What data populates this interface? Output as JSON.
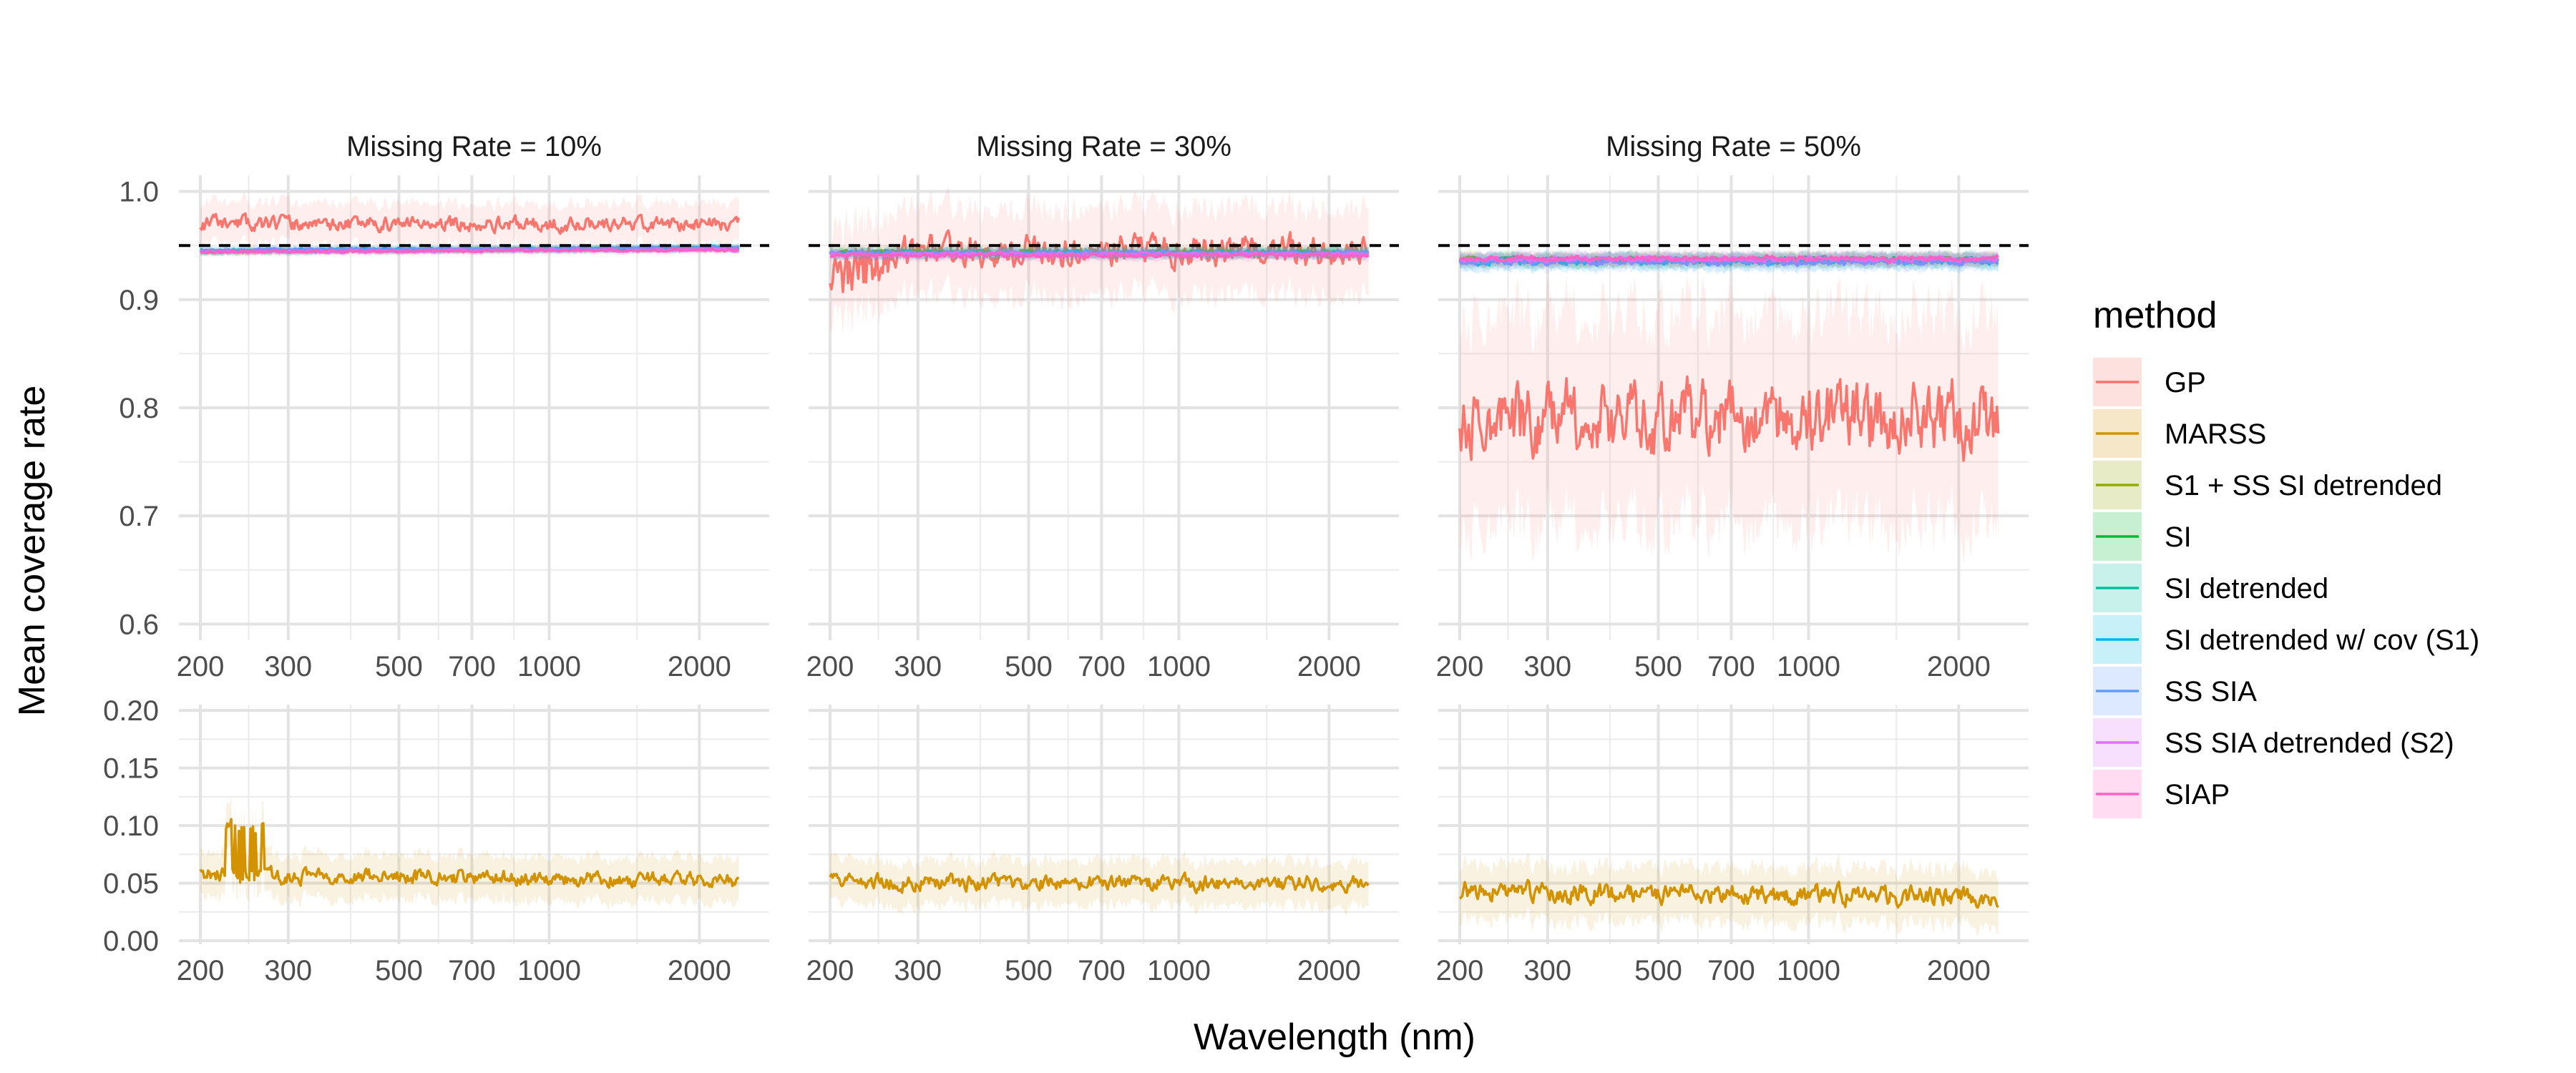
{
  "chart_data": {
    "type": "line",
    "xlabel": "Wavelength (nm)",
    "ylabel": "Mean coverage rate",
    "x_scale": "log",
    "x_range": [
      200,
      2500
    ],
    "x_ticks": [
      200,
      300,
      500,
      700,
      1000,
      2000
    ],
    "x_tick_labels": [
      "200",
      "300",
      "500",
      "700",
      "1000",
      "2000"
    ],
    "reference_line": 0.95,
    "grid": true,
    "legend": {
      "title": "method",
      "position": "right",
      "items": [
        {
          "name": "GP",
          "color": "#F8766D"
        },
        {
          "name": "MARSS",
          "color": "#D39200"
        },
        {
          "name": "S1 + SS SI detrended",
          "color": "#93AA00"
        },
        {
          "name": "SI",
          "color": "#00BA38"
        },
        {
          "name": "SI detrended",
          "color": "#00C19F"
        },
        {
          "name": "SI detrended w/ cov (S1)",
          "color": "#00B9E3"
        },
        {
          "name": "SS SIA",
          "color": "#619CFF"
        },
        {
          "name": "SS SIA detrended (S2)",
          "color": "#DB72FB"
        },
        {
          "name": "SIAP",
          "color": "#FF61C3"
        }
      ]
    },
    "panels": {
      "facets": [
        "Missing Rate = 10%",
        "Missing Rate = 30%",
        "Missing Rate = 50%"
      ],
      "upper": {
        "ylim": [
          0.585,
          1.015
        ],
        "y_ticks": [
          0.6,
          0.7,
          0.8,
          0.9,
          1.0
        ],
        "y_tick_labels": [
          "0.6",
          "0.7",
          "0.8",
          "0.9",
          "1.0"
        ]
      },
      "lower": {
        "ylim": [
          -0.003,
          0.205
        ],
        "y_ticks": [
          0.0,
          0.05,
          0.1,
          0.15,
          0.2
        ],
        "y_tick_labels": [
          "0.00",
          "0.05",
          "0.10",
          "0.15",
          "0.20"
        ]
      }
    },
    "series": [
      {
        "name": "GP",
        "panel": "upper",
        "facet": 0,
        "mean": 0.97,
        "amp": 0.012,
        "trend": 0.0,
        "seed": 11
      },
      {
        "name": "GP",
        "panel": "upper",
        "facet": 1,
        "mean": 0.945,
        "amp": 0.025,
        "trend": 0.0,
        "seed": 12
      },
      {
        "name": "GP",
        "panel": "upper",
        "facet": 2,
        "mean": 0.79,
        "amp": 0.06,
        "trend": 0.0,
        "seed": 13
      },
      {
        "name": "MARSS",
        "panel": "lower",
        "facet": 0,
        "mean": 0.055,
        "amp": 0.012,
        "trend": -0.005,
        "seed": 21
      },
      {
        "name": "MARSS",
        "panel": "lower",
        "facet": 1,
        "mean": 0.05,
        "amp": 0.012,
        "trend": 0.0,
        "seed": 22
      },
      {
        "name": "MARSS",
        "panel": "lower",
        "facet": 2,
        "mean": 0.04,
        "amp": 0.015,
        "trend": -0.005,
        "seed": 23
      },
      {
        "name": "S1 + SS SI detrended",
        "panel": "upper",
        "facet": 0,
        "mean": 0.946,
        "amp": 0.002,
        "trend": 0.003,
        "seed": 31
      },
      {
        "name": "S1 + SS SI detrended",
        "panel": "upper",
        "facet": 1,
        "mean": 0.944,
        "amp": 0.003,
        "trend": 0.0,
        "seed": 32
      },
      {
        "name": "S1 + SS SI detrended",
        "panel": "upper",
        "facet": 2,
        "mean": 0.937,
        "amp": 0.004,
        "trend": 0.0,
        "seed": 33
      },
      {
        "name": "SI",
        "panel": "upper",
        "facet": 0,
        "mean": 0.946,
        "amp": 0.002,
        "trend": 0.003,
        "seed": 41
      },
      {
        "name": "SI",
        "panel": "upper",
        "facet": 1,
        "mean": 0.943,
        "amp": 0.003,
        "trend": 0.0,
        "seed": 42
      },
      {
        "name": "SI",
        "panel": "upper",
        "facet": 2,
        "mean": 0.937,
        "amp": 0.004,
        "trend": 0.0,
        "seed": 43
      },
      {
        "name": "SI detrended",
        "panel": "upper",
        "facet": 0,
        "mean": 0.946,
        "amp": 0.002,
        "trend": 0.003,
        "seed": 51
      },
      {
        "name": "SI detrended",
        "panel": "upper",
        "facet": 1,
        "mean": 0.943,
        "amp": 0.003,
        "trend": 0.0,
        "seed": 52
      },
      {
        "name": "SI detrended",
        "panel": "upper",
        "facet": 2,
        "mean": 0.936,
        "amp": 0.004,
        "trend": 0.0,
        "seed": 53
      },
      {
        "name": "SI detrended w/ cov (S1)",
        "panel": "upper",
        "facet": 0,
        "mean": 0.947,
        "amp": 0.002,
        "trend": 0.003,
        "seed": 61
      },
      {
        "name": "SI detrended w/ cov (S1)",
        "panel": "upper",
        "facet": 1,
        "mean": 0.943,
        "amp": 0.003,
        "trend": 0.0,
        "seed": 62
      },
      {
        "name": "SI detrended w/ cov (S1)",
        "panel": "upper",
        "facet": 2,
        "mean": 0.935,
        "amp": 0.005,
        "trend": 0.0,
        "seed": 63
      },
      {
        "name": "SS SIA",
        "panel": "upper",
        "facet": 0,
        "mean": 0.947,
        "amp": 0.002,
        "trend": 0.003,
        "seed": 71
      },
      {
        "name": "SS SIA",
        "panel": "upper",
        "facet": 1,
        "mean": 0.943,
        "amp": 0.003,
        "trend": 0.0,
        "seed": 72
      },
      {
        "name": "SS SIA",
        "panel": "upper",
        "facet": 2,
        "mean": 0.935,
        "amp": 0.005,
        "trend": 0.0,
        "seed": 73
      },
      {
        "name": "SS SIA detrended (S2)",
        "panel": "upper",
        "facet": 0,
        "mean": 0.945,
        "amp": 0.002,
        "trend": 0.002,
        "seed": 81
      },
      {
        "name": "SS SIA detrended (S2)",
        "panel": "upper",
        "facet": 1,
        "mean": 0.942,
        "amp": 0.003,
        "trend": 0.0,
        "seed": 82
      },
      {
        "name": "SS SIA detrended (S2)",
        "panel": "upper",
        "facet": 2,
        "mean": 0.937,
        "amp": 0.004,
        "trend": 0.0,
        "seed": 83
      },
      {
        "name": "SIAP",
        "panel": "upper",
        "facet": 0,
        "mean": 0.945,
        "amp": 0.002,
        "trend": 0.002,
        "seed": 91
      },
      {
        "name": "SIAP",
        "panel": "upper",
        "facet": 1,
        "mean": 0.941,
        "amp": 0.003,
        "trend": 0.0,
        "seed": 92
      },
      {
        "name": "SIAP",
        "panel": "upper",
        "facet": 2,
        "mean": 0.938,
        "amp": 0.004,
        "trend": 0.0,
        "seed": 93
      }
    ]
  }
}
